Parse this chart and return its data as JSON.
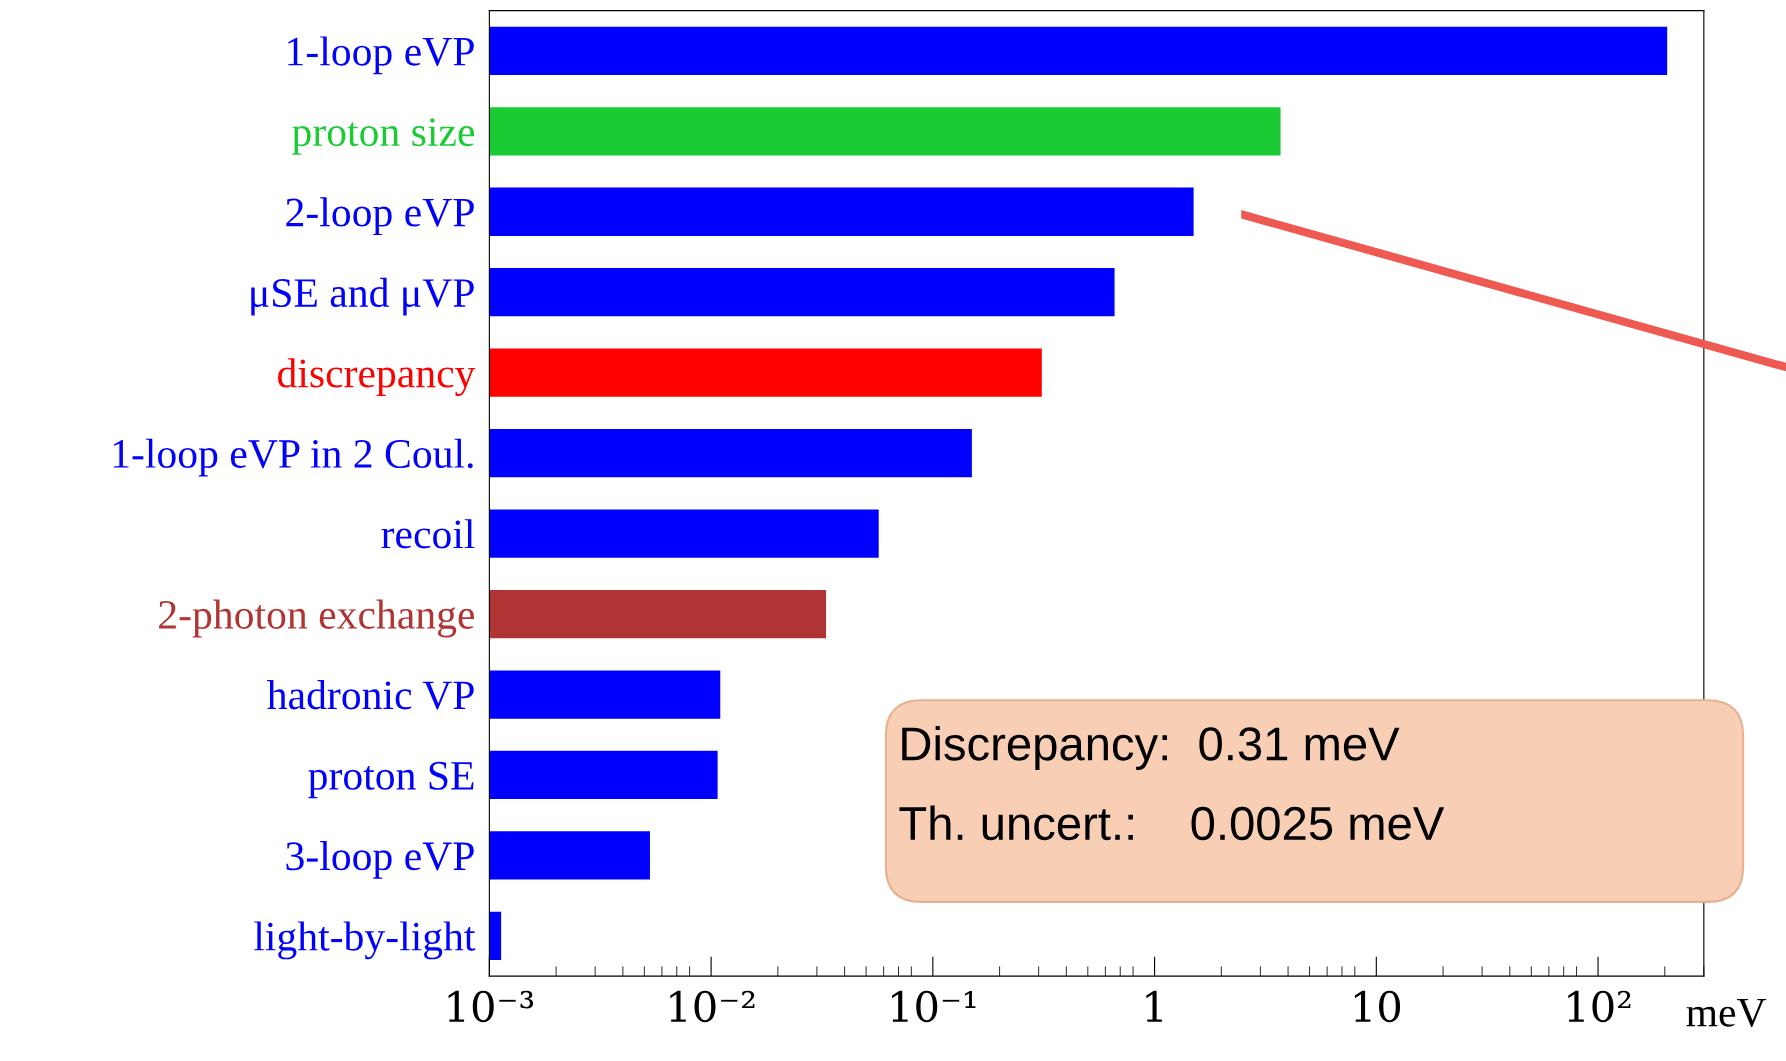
{
  "chart_data": {
    "type": "bar",
    "orientation": "horizontal",
    "log": "x",
    "categories": [
      "1-loop eVP",
      "proton size",
      "2-loop eVP",
      "μSE and μVP",
      "discrepancy",
      "1-loop eVP in 2 Coul.",
      "recoil",
      "2-photon exchange",
      "hadronic VP",
      "proton SE",
      "3-loop eVP",
      "light-by-light"
    ],
    "values": [
      205,
      3.7,
      1.5,
      0.66,
      0.31,
      0.15,
      0.057,
      0.033,
      0.011,
      0.0107,
      0.0053,
      0.00113
    ],
    "colors": [
      "#0000ff",
      "#1bcb33",
      "#0000ff",
      "#0000ff",
      "#ff0000",
      "#0000ff",
      "#0000ff",
      "#b03434",
      "#0000ff",
      "#0000ff",
      "#0000ff",
      "#0000ff"
    ],
    "xlim": [
      0.001,
      300
    ],
    "xticks": [
      {
        "value": 0.001,
        "label": "10⁻³"
      },
      {
        "value": 0.01,
        "label": "10⁻²"
      },
      {
        "value": 0.1,
        "label": "10⁻¹"
      },
      1,
      10,
      {
        "value": 100,
        "label": "10²"
      }
    ],
    "xlabel": "meV",
    "grid": false,
    "annotations": [
      "Discrepancy:  0.31 meV",
      "Th. uncert.:    0.0025 meV"
    ]
  }
}
